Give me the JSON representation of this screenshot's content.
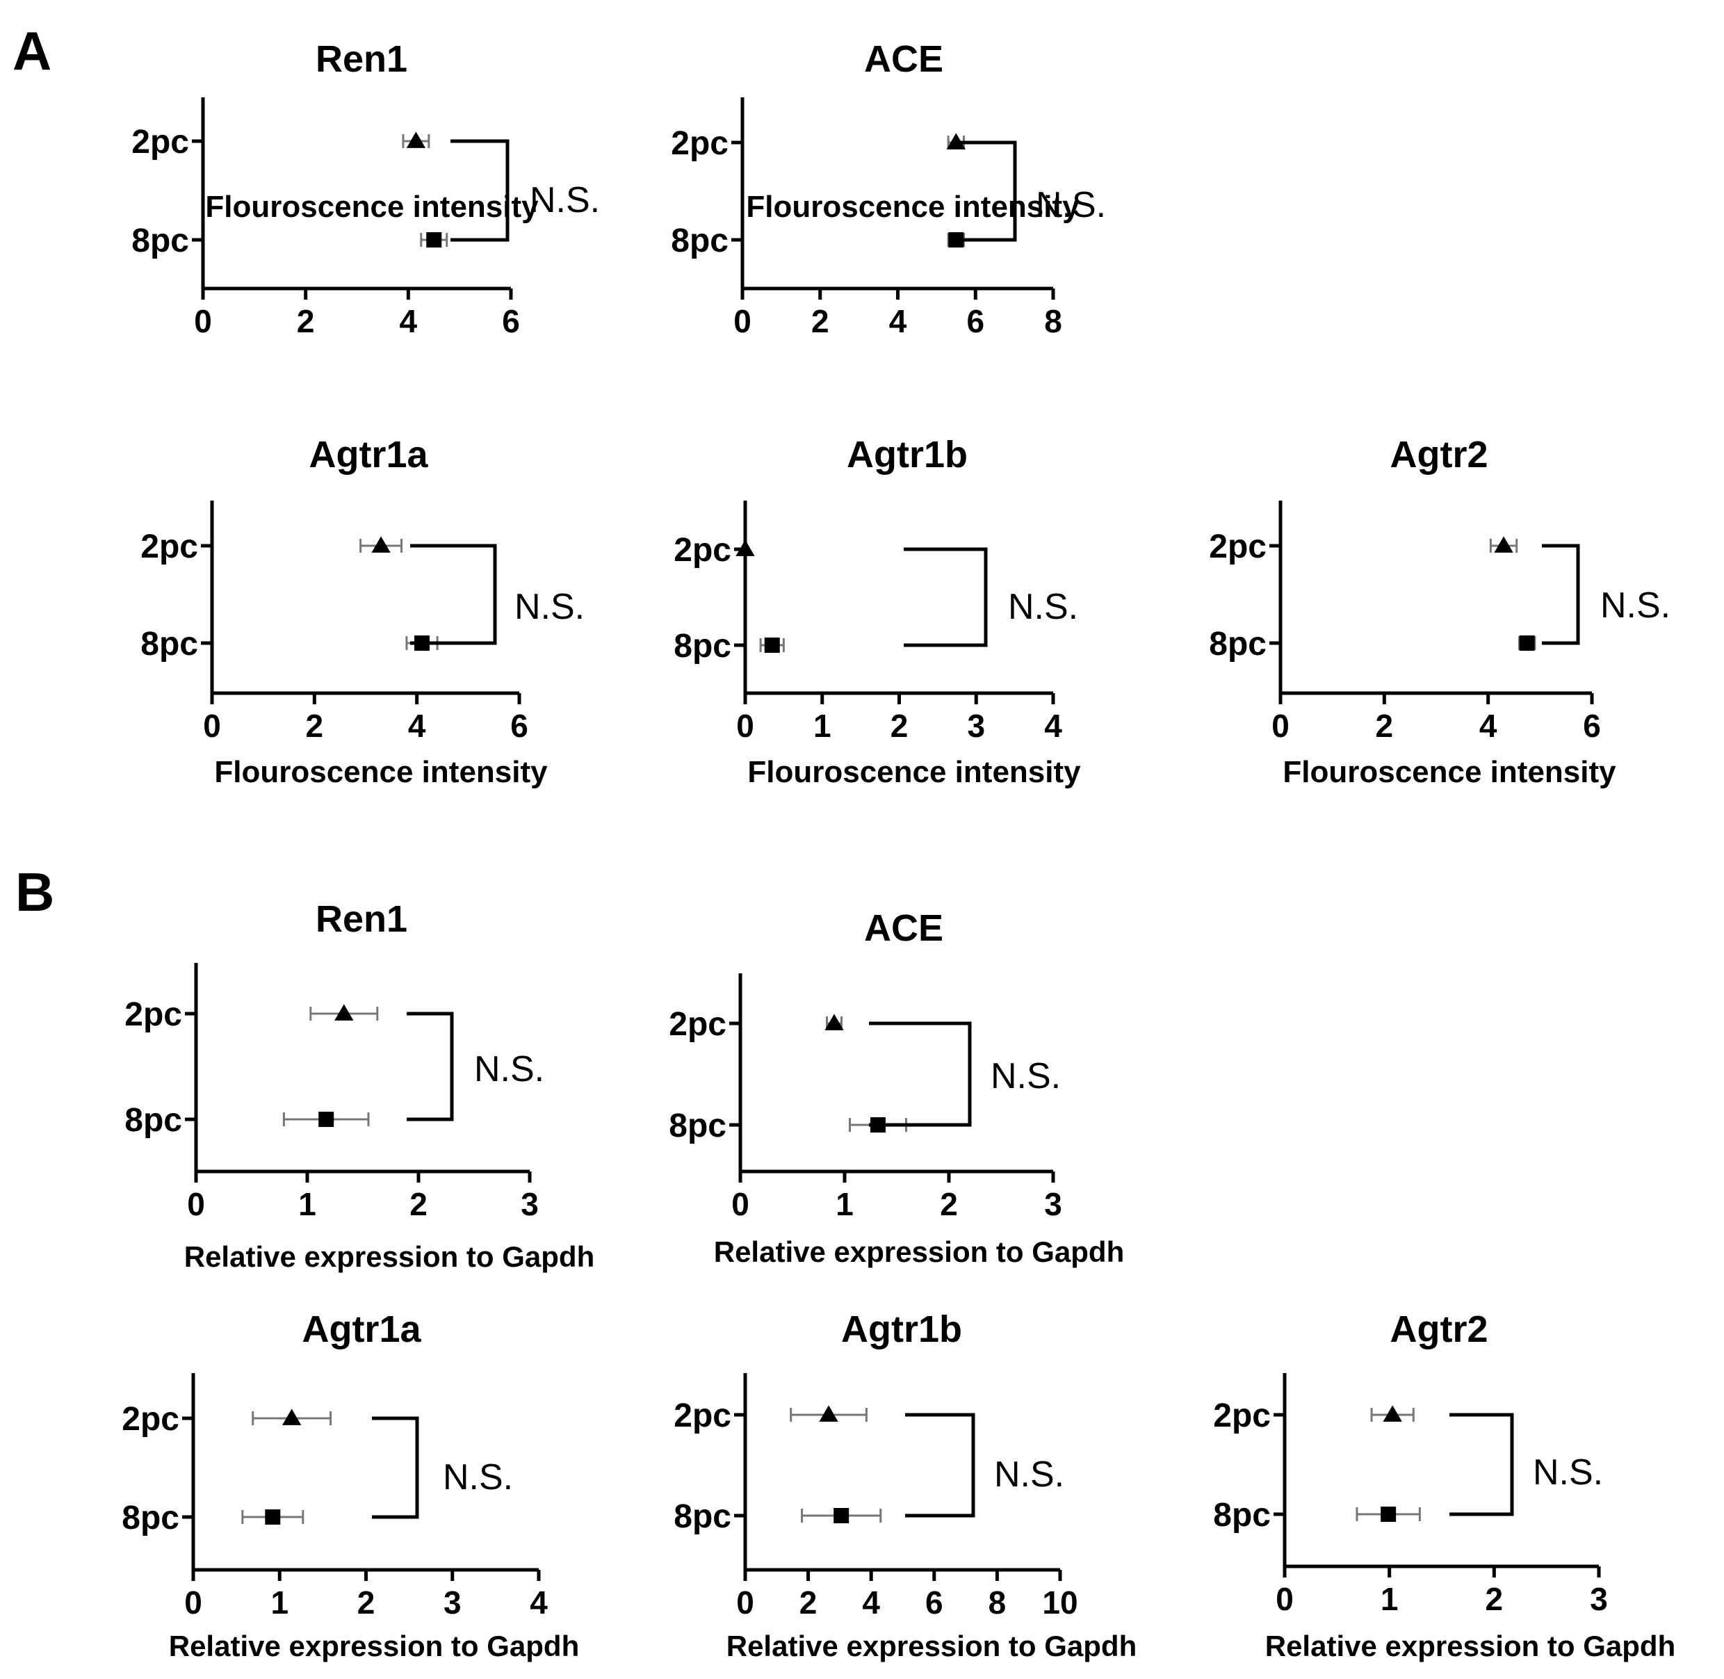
{
  "panels": [
    "A",
    "B"
  ],
  "chart_data": [
    {
      "type": "scatter",
      "panel": "A",
      "title": "Ren1",
      "categories": [
        "2pc",
        "8pc"
      ],
      "series": [
        {
          "marker": "triangle",
          "values": [
            4.15,
            null
          ],
          "err": [
            0.25,
            null
          ]
        },
        {
          "marker": "square",
          "values": [
            null,
            4.5
          ],
          "err": [
            null,
            0.25
          ]
        }
      ],
      "xlabel": "Flouroscence intensity",
      "xlim": [
        0,
        6
      ],
      "xticks": [
        "0",
        "2",
        "4",
        "6"
      ],
      "annotation": "N.S."
    },
    {
      "type": "scatter",
      "panel": "A",
      "title": "ACE",
      "categories": [
        "2pc",
        "8pc"
      ],
      "series": [
        {
          "marker": "triangle",
          "values": [
            5.5,
            null
          ],
          "err": [
            0.2,
            null
          ]
        },
        {
          "marker": "square",
          "values": [
            null,
            5.5
          ],
          "err": [
            null,
            0.2
          ]
        }
      ],
      "xlabel": "Flouroscence intensity",
      "xlim": [
        0,
        8
      ],
      "xticks": [
        "0",
        "2",
        "4",
        "6",
        "8"
      ],
      "annotation": "N.S."
    },
    {
      "type": "scatter",
      "panel": "A",
      "title": "Agtr1a",
      "categories": [
        "2pc",
        "8pc"
      ],
      "series": [
        {
          "marker": "triangle",
          "values": [
            3.3,
            null
          ],
          "err": [
            0.4,
            null
          ]
        },
        {
          "marker": "square",
          "values": [
            null,
            4.1
          ],
          "err": [
            null,
            0.3
          ]
        }
      ],
      "xlabel": "Flouroscence intensity",
      "xlim": [
        0,
        6
      ],
      "xticks": [
        "0",
        "2",
        "4",
        "6"
      ],
      "annotation": "N.S."
    },
    {
      "type": "scatter",
      "panel": "A",
      "title": "Agtr1b",
      "categories": [
        "2pc",
        "8pc"
      ],
      "series": [
        {
          "marker": "triangle",
          "values": [
            0.0,
            null
          ],
          "err": [
            0.0,
            null
          ]
        },
        {
          "marker": "square",
          "values": [
            null,
            0.35
          ],
          "err": [
            null,
            0.15
          ]
        }
      ],
      "xlabel": "Flouroscence intensity",
      "xlim": [
        0,
        4
      ],
      "xticks": [
        "0",
        "1",
        "2",
        "3",
        "4"
      ],
      "annotation": "N.S."
    },
    {
      "type": "scatter",
      "panel": "A",
      "title": "Agtr2",
      "categories": [
        "2pc",
        "8pc"
      ],
      "series": [
        {
          "marker": "triangle",
          "values": [
            4.3,
            null
          ],
          "err": [
            0.25,
            null
          ]
        },
        {
          "marker": "square",
          "values": [
            null,
            4.75
          ],
          "err": [
            null,
            0.15
          ]
        }
      ],
      "xlabel": "Flouroscence intensity",
      "xlim": [
        0,
        6
      ],
      "xticks": [
        "0",
        "2",
        "4",
        "6"
      ],
      "annotation": "N.S."
    },
    {
      "type": "scatter",
      "panel": "B",
      "title": "Ren1",
      "categories": [
        "2pc",
        "8pc"
      ],
      "series": [
        {
          "marker": "triangle",
          "values": [
            1.33,
            null
          ],
          "err": [
            0.3,
            null
          ]
        },
        {
          "marker": "square",
          "values": [
            null,
            1.17
          ],
          "err": [
            null,
            0.38
          ]
        }
      ],
      "xlabel": "Relative expression to Gapdh",
      "xlim": [
        0,
        3
      ],
      "xticks": [
        "0",
        "1",
        "2",
        "3"
      ],
      "annotation": "N.S."
    },
    {
      "type": "scatter",
      "panel": "B",
      "title": "ACE",
      "categories": [
        "2pc",
        "8pc"
      ],
      "series": [
        {
          "marker": "triangle",
          "values": [
            0.9,
            null
          ],
          "err": [
            0.07,
            null
          ]
        },
        {
          "marker": "square",
          "values": [
            null,
            1.32
          ],
          "err": [
            null,
            0.27
          ]
        }
      ],
      "xlabel": "Relative expression to Gapdh",
      "xlim": [
        0,
        3
      ],
      "xticks": [
        "0",
        "1",
        "2",
        "3"
      ],
      "annotation": "N.S."
    },
    {
      "type": "scatter",
      "panel": "B",
      "title": "Agtr1a",
      "categories": [
        "2pc",
        "8pc"
      ],
      "series": [
        {
          "marker": "triangle",
          "values": [
            1.14,
            null
          ],
          "err": [
            0.45,
            null
          ]
        },
        {
          "marker": "square",
          "values": [
            null,
            0.92
          ],
          "err": [
            null,
            0.35
          ]
        }
      ],
      "xlabel": "Relative expression to Gapdh",
      "xlim": [
        0,
        4
      ],
      "xticks": [
        "0",
        "1",
        "2",
        "3",
        "4"
      ],
      "annotation": "N.S."
    },
    {
      "type": "scatter",
      "panel": "B",
      "title": "Agtr1b",
      "categories": [
        "2pc",
        "8pc"
      ],
      "series": [
        {
          "marker": "triangle",
          "values": [
            2.65,
            null
          ],
          "err": [
            1.2,
            null
          ]
        },
        {
          "marker": "square",
          "values": [
            null,
            3.05
          ],
          "err": [
            null,
            1.25
          ]
        }
      ],
      "xlabel": "Relative expression to Gapdh",
      "xlim": [
        0,
        10
      ],
      "xticks": [
        "0",
        "2",
        "4",
        "6",
        "8",
        "10"
      ],
      "annotation": "N.S."
    },
    {
      "type": "scatter",
      "panel": "B",
      "title": "Agtr2",
      "categories": [
        "2pc",
        "8pc"
      ],
      "series": [
        {
          "marker": "triangle",
          "values": [
            1.03,
            null
          ],
          "err": [
            0.2,
            null
          ]
        },
        {
          "marker": "square",
          "values": [
            null,
            0.99
          ],
          "err": [
            null,
            0.3
          ]
        }
      ],
      "xlabel": "Relative expression to Gapdh",
      "xlim": [
        0,
        3
      ],
      "xticks": [
        "0",
        "1",
        "2",
        "3"
      ],
      "annotation": "N.S."
    }
  ]
}
